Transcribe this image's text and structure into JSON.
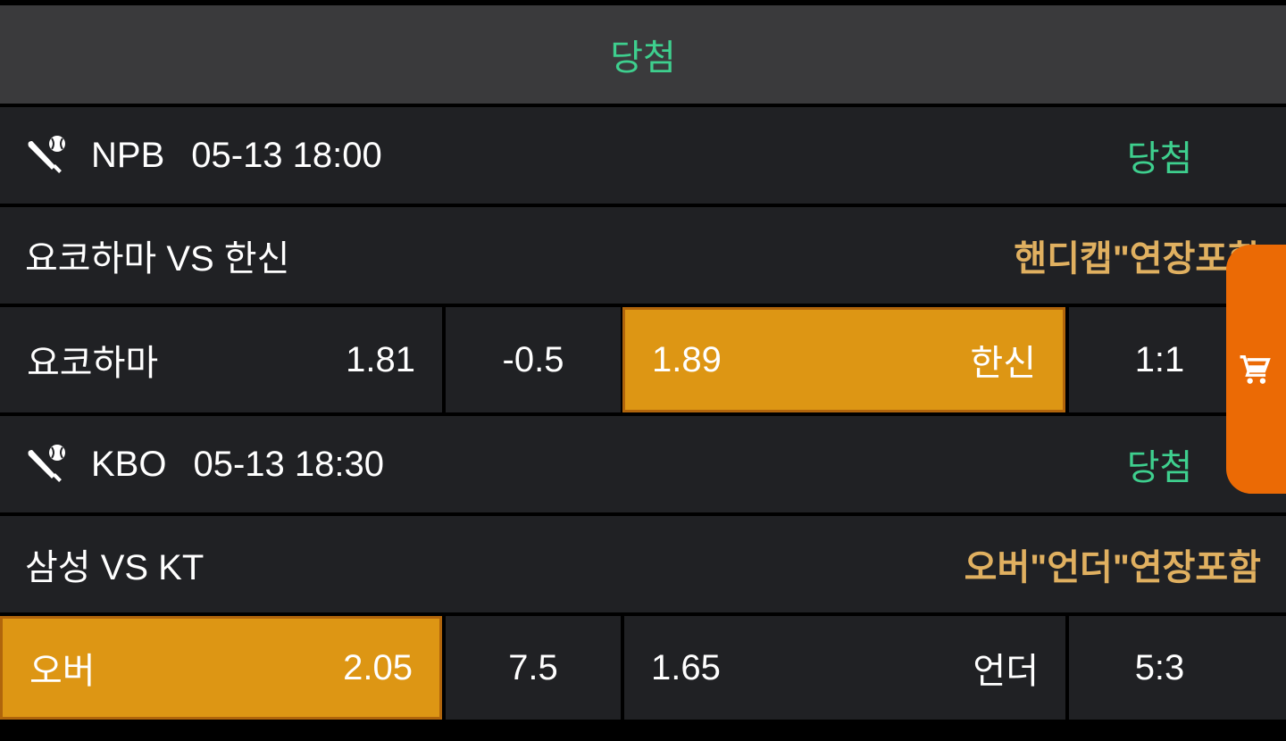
{
  "header": {
    "status": "당첨"
  },
  "colors": {
    "win": "#3ecf8e",
    "market": "#e0b060",
    "selected": "#dd9614",
    "cart": "#eb6a05"
  },
  "games": [
    {
      "league": "NPB",
      "datetime": "05-13 18:00",
      "status": "당첨",
      "matchup": "요코하마 VS 한신",
      "market": "핸디캡\"연장포함",
      "home": "요코하마",
      "home_odds": "1.81",
      "line": "-0.5",
      "away_odds": "1.89",
      "away": "한신",
      "score": "1:1",
      "selected": "away",
      "icon": "baseball-icon"
    },
    {
      "league": "KBO",
      "datetime": "05-13 18:30",
      "status": "당첨",
      "matchup": "삼성 VS KT",
      "market": "오버\"언더\"연장포함",
      "home": "오버",
      "home_odds": "2.05",
      "line": "7.5",
      "away_odds": "1.65",
      "away": "언더",
      "score": "5:3",
      "selected": "home",
      "icon": "baseball-icon"
    }
  ],
  "cart": {
    "icon": "cart-icon"
  }
}
